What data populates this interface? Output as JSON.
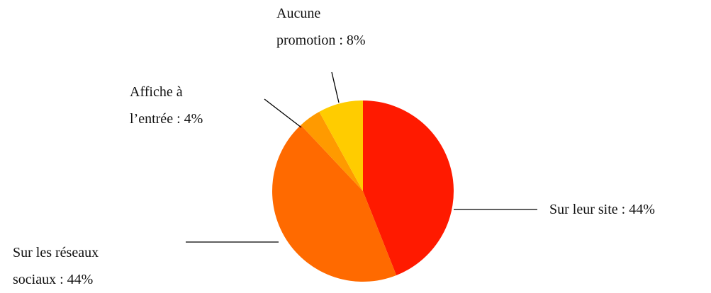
{
  "chart_data": {
    "type": "pie",
    "labels": [
      "Sur leur site : 44%",
      "Sur les réseaux\nsociaux : 44%",
      "Affiche à\nl’entrée : 4%",
      "Aucune\npromotion : 8%"
    ],
    "values": [
      44,
      44,
      4,
      8
    ],
    "colors": [
      "#ff1a00",
      "#ff6a00",
      "#ff9a00",
      "#ffcc00"
    ]
  }
}
